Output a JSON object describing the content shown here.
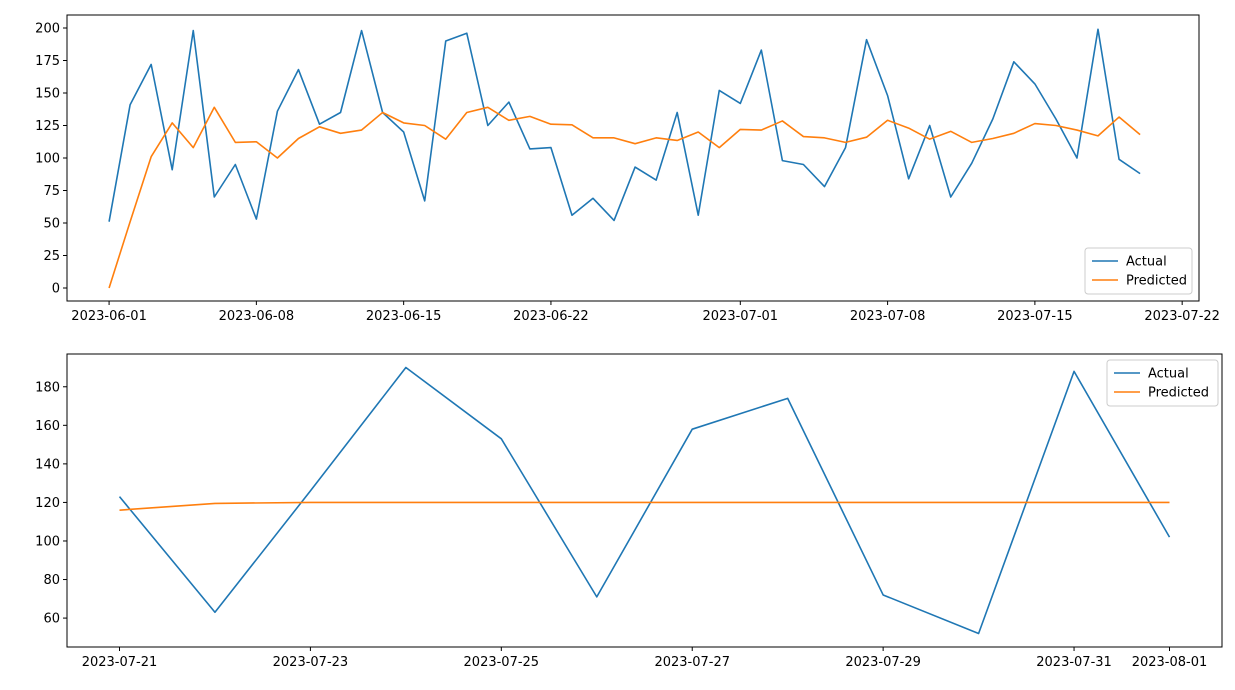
{
  "colors": {
    "actual": "#1f77b4",
    "predicted": "#ff7f0e",
    "axes": "#000000",
    "legend_border": "#cccccc"
  },
  "chart_data": [
    {
      "type": "line",
      "x_type": "date",
      "x": [
        "2023-06-01",
        "2023-06-02",
        "2023-06-03",
        "2023-06-04",
        "2023-06-05",
        "2023-06-06",
        "2023-06-07",
        "2023-06-08",
        "2023-06-09",
        "2023-06-10",
        "2023-06-11",
        "2023-06-12",
        "2023-06-13",
        "2023-06-14",
        "2023-06-15",
        "2023-06-16",
        "2023-06-17",
        "2023-06-18",
        "2023-06-19",
        "2023-06-20",
        "2023-06-21",
        "2023-06-22",
        "2023-06-23",
        "2023-06-24",
        "2023-06-25",
        "2023-06-26",
        "2023-06-27",
        "2023-06-28",
        "2023-06-29",
        "2023-06-30",
        "2023-07-01",
        "2023-07-02",
        "2023-07-03",
        "2023-07-04",
        "2023-07-05",
        "2023-07-06",
        "2023-07-07",
        "2023-07-08",
        "2023-07-09",
        "2023-07-10",
        "2023-07-11",
        "2023-07-12",
        "2023-07-13",
        "2023-07-14",
        "2023-07-15",
        "2023-07-16",
        "2023-07-17",
        "2023-07-18",
        "2023-07-19",
        "2023-07-20"
      ],
      "series": [
        {
          "name": "Actual",
          "values": [
            51,
            141,
            172,
            91,
            198,
            70,
            95,
            53,
            136,
            168,
            126,
            135,
            198,
            135,
            120,
            67,
            190,
            196,
            125,
            143,
            107,
            108,
            56,
            69,
            52,
            93,
            83,
            135,
            56,
            152,
            142,
            183,
            98,
            95,
            78,
            108,
            191,
            148,
            84,
            125,
            70,
            96,
            130,
            174,
            157,
            130,
            100,
            199,
            99,
            88
          ]
        },
        {
          "name": "Predicted",
          "values": [
            0,
            51,
            101,
            127,
            108,
            139,
            112,
            112.5,
            100,
            115,
            124,
            119,
            121.5,
            135,
            127,
            125,
            114.5,
            135,
            139,
            129,
            132,
            126,
            125.5,
            115.5,
            115.5,
            111,
            115.5,
            113.5,
            120,
            108,
            122,
            121.5,
            128.5,
            116.5,
            115.5,
            112,
            116,
            129,
            123,
            114.5,
            120.5,
            112,
            115,
            119,
            126.5,
            125,
            121.5,
            117,
            131.5,
            118
          ]
        }
      ],
      "x_ticks": [
        "2023-06-01",
        "2023-06-08",
        "2023-06-15",
        "2023-06-22",
        "2023-07-01",
        "2023-07-08",
        "2023-07-15",
        "2023-07-22"
      ],
      "y_ticks": [
        0,
        25,
        50,
        75,
        100,
        125,
        150,
        175,
        200
      ],
      "xlim": [
        "2023-05-30",
        "2023-07-22.8"
      ],
      "ylim": [
        -10,
        210
      ],
      "legend": "lower right",
      "legend_entries": [
        "Actual",
        "Predicted"
      ],
      "grid": false
    },
    {
      "type": "line",
      "x_type": "date",
      "x": [
        "2023-07-21",
        "2023-07-22",
        "2023-07-23",
        "2023-07-24",
        "2023-07-25",
        "2023-07-26",
        "2023-07-27",
        "2023-07-28",
        "2023-07-29",
        "2023-07-30",
        "2023-07-31",
        "2023-08-01"
      ],
      "series": [
        {
          "name": "Actual",
          "values": [
            123,
            63,
            126,
            190,
            153,
            71,
            158,
            174,
            72,
            52,
            188,
            102
          ]
        },
        {
          "name": "Predicted",
          "values": [
            116,
            119.5,
            120,
            120,
            120,
            120,
            120,
            120,
            120,
            120,
            120,
            120
          ]
        }
      ],
      "x_ticks": [
        "2023-07-21",
        "2023-07-23",
        "2023-07-25",
        "2023-07-27",
        "2023-07-29",
        "2023-07-31",
        "2023-08-01"
      ],
      "y_ticks": [
        60,
        80,
        100,
        120,
        140,
        160,
        180
      ],
      "xlim": [
        "2023-07-20.45",
        "2023-08-01.55"
      ],
      "ylim": [
        45,
        197
      ],
      "legend": "upper right",
      "legend_entries": [
        "Actual",
        "Predicted"
      ],
      "grid": false
    }
  ]
}
